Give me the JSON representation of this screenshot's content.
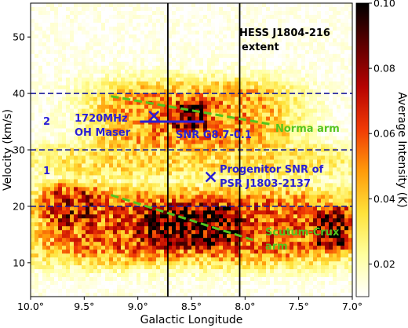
{
  "chart_data": {
    "type": "heatmap",
    "title": "",
    "xlabel": "Galactic Longitude",
    "ylabel": "Velocity (km/s)",
    "colorbar_label": "Average Intensity (K)",
    "x_range": [
      10.0,
      7.0
    ],
    "y_range": [
      4,
      56
    ],
    "color_range": [
      0.01,
      0.1
    ],
    "x_ticks": [
      {
        "value": 10.0,
        "label": "10.0°"
      },
      {
        "value": 9.5,
        "label": "9.5°"
      },
      {
        "value": 9.0,
        "label": "9.0°"
      },
      {
        "value": 8.5,
        "label": "8.5°"
      },
      {
        "value": 8.0,
        "label": "8.0°"
      },
      {
        "value": 7.5,
        "label": "7.5°"
      },
      {
        "value": 7.0,
        "label": "7.0°"
      }
    ],
    "y_ticks": [
      {
        "value": 10,
        "label": "10"
      },
      {
        "value": 20,
        "label": "20"
      },
      {
        "value": 30,
        "label": "30"
      },
      {
        "value": 40,
        "label": "40"
      },
      {
        "value": 50,
        "label": "50"
      }
    ],
    "colorbar_ticks": [
      {
        "value": 0.02,
        "label": "0.02"
      },
      {
        "value": 0.04,
        "label": "0.04"
      },
      {
        "value": 0.06,
        "label": "0.06"
      },
      {
        "value": 0.08,
        "label": "0.08"
      },
      {
        "value": 0.1,
        "label": "0.10"
      }
    ],
    "colormap_stops": [
      "#ffffff",
      "#ffff9e",
      "#ffe23a",
      "#ff9a0a",
      "#f03a05",
      "#b60302",
      "#5e0000",
      "#000000"
    ],
    "emission_regions": [
      {
        "x_from": 10.0,
        "x_to": 7.0,
        "v_from": 10,
        "v_to": 23,
        "intensity": 0.06
      },
      {
        "x_from": 9.1,
        "x_to": 7.9,
        "v_from": 12,
        "v_to": 21,
        "intensity": 0.09
      },
      {
        "x_from": 9.9,
        "x_to": 9.3,
        "v_from": 15,
        "v_to": 24,
        "intensity": 0.07
      },
      {
        "x_from": 7.4,
        "x_to": 7.0,
        "v_from": 12,
        "v_to": 20,
        "intensity": 0.09
      },
      {
        "x_from": 8.7,
        "x_to": 8.3,
        "v_from": 33,
        "v_to": 39,
        "intensity": 0.09
      },
      {
        "x_from": 9.4,
        "x_to": 7.6,
        "v_from": 29,
        "v_to": 42,
        "intensity": 0.05
      },
      {
        "x_from": 10.0,
        "x_to": 7.0,
        "v_from": 25,
        "v_to": 31,
        "intensity": 0.035
      }
    ],
    "vertical_lines": [
      8.72,
      8.05
    ],
    "horizontal_dashed_lines": [
      20,
      30,
      40
    ],
    "arm_lines": [
      {
        "name": "Norma arm",
        "points": [
          [
            9.25,
            39.5
          ],
          [
            7.75,
            34.5
          ]
        ]
      },
      {
        "name": "Scutum-Crux arm",
        "points": [
          [
            9.25,
            22.0
          ],
          [
            7.92,
            14.0
          ]
        ]
      }
    ],
    "markers": [
      {
        "label": "1720MHz OH Maser",
        "symbol": "x",
        "x": 8.85,
        "y": 36.0
      },
      {
        "label": "Progenitor SNR of PSR J1803-2137",
        "symbol": "x",
        "x": 8.32,
        "y": 25.2
      }
    ],
    "snr_bar": {
      "label": "SNR G8.7-0.1",
      "x_from": 8.98,
      "x_to": 8.38,
      "y": 35.0
    },
    "annotations": {
      "region_2": "2",
      "region_1": "1",
      "maser_line1": "1720MHz",
      "maser_line2": "OH Maser",
      "snr": "SNR G8.7-0.1",
      "norma": "Norma arm",
      "progenitor_line1": "Progenitor SNR of",
      "progenitor_line2": "PSR J1803-2137",
      "scutum_line1": "Scutum-Crux",
      "scutum_line2": "arm",
      "hess_line1": "HESS J1804-216",
      "hess_line2": "extent"
    }
  }
}
